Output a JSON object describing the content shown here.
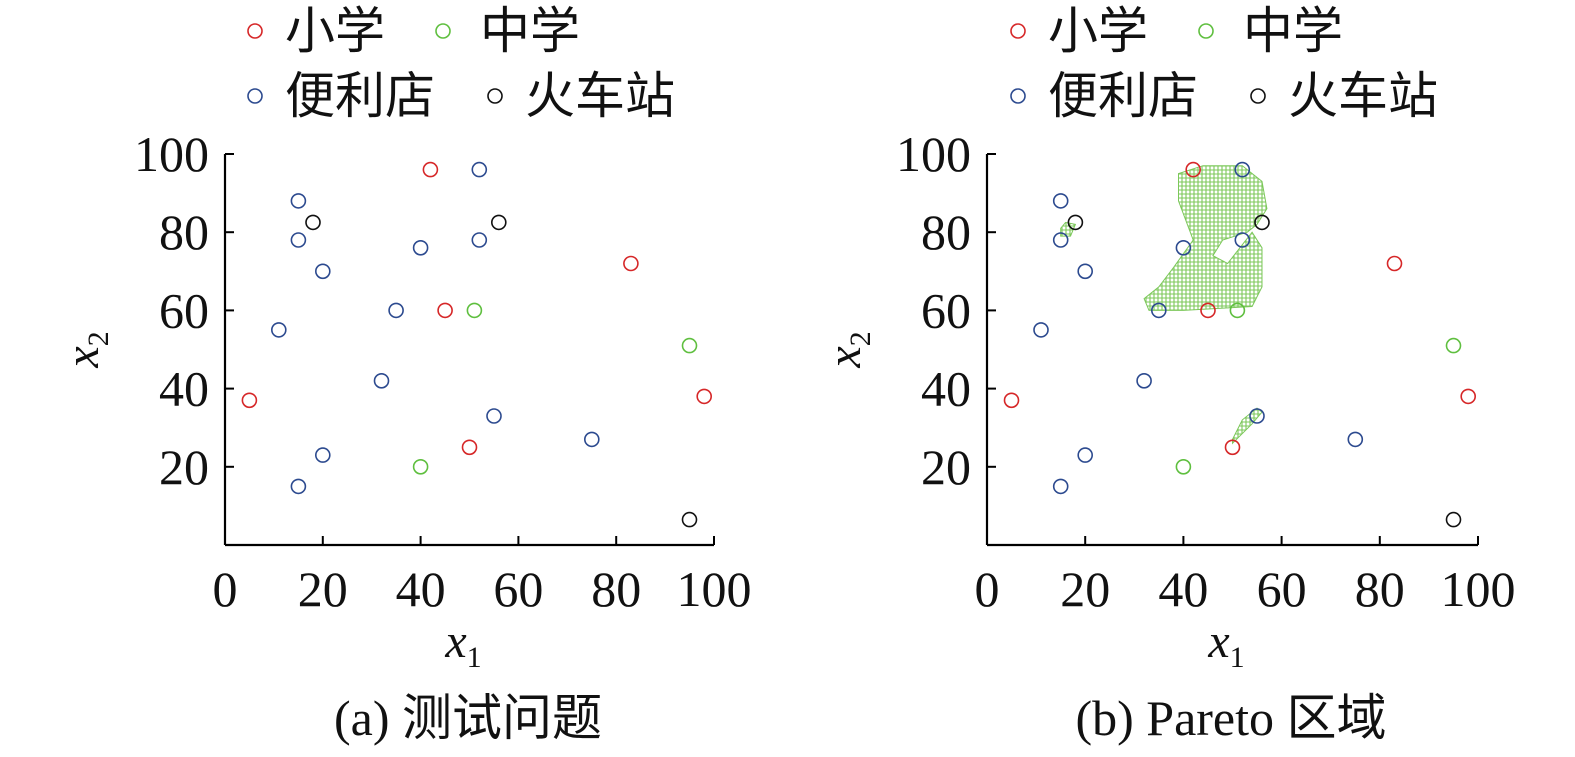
{
  "chart_data": [
    {
      "type": "scatter",
      "caption": "(a) 测试问题",
      "xlabel": "x",
      "xlabel_sub": "1",
      "ylabel": "x",
      "ylabel_sub": "2",
      "xlim": [
        0,
        100
      ],
      "ylim": [
        0,
        100
      ],
      "x_ticks": [
        "0",
        "20",
        "40",
        "60",
        "80",
        "100"
      ],
      "y_ticks": [
        "20",
        "40",
        "60",
        "80",
        "100"
      ],
      "legend": {
        "position": "top",
        "entries": [
          "小学",
          "中学",
          "便利店",
          "火车站"
        ]
      },
      "series": [
        {
          "name": "小学",
          "color": "#d62728",
          "points": [
            [
              5,
              37
            ],
            [
              42,
              96
            ],
            [
              45,
              60
            ],
            [
              50,
              25
            ],
            [
              83,
              72
            ],
            [
              98,
              38
            ]
          ]
        },
        {
          "name": "中学",
          "color": "#5fbf3f",
          "points": [
            [
              40,
              20
            ],
            [
              51,
              60
            ],
            [
              95,
              51
            ]
          ]
        },
        {
          "name": "便利店",
          "color": "#2c4a8f",
          "points": [
            [
              15,
              88
            ],
            [
              15,
              78
            ],
            [
              15,
              15
            ],
            [
              11,
              55
            ],
            [
              20,
              70
            ],
            [
              20,
              23
            ],
            [
              32,
              42
            ],
            [
              35,
              60
            ],
            [
              40,
              76
            ],
            [
              52,
              96
            ],
            [
              52,
              78
            ],
            [
              55,
              33
            ],
            [
              75,
              27
            ]
          ]
        },
        {
          "name": "火车站",
          "color": "#111111",
          "points": [
            [
              18,
              82.5
            ],
            [
              56,
              82.5
            ],
            [
              95,
              6.5
            ]
          ]
        }
      ]
    },
    {
      "type": "scatter",
      "caption": "(b) Pareto 区域",
      "xlabel": "x",
      "xlabel_sub": "1",
      "ylabel": "x",
      "ylabel_sub": "2",
      "xlim": [
        0,
        100
      ],
      "ylim": [
        0,
        100
      ],
      "x_ticks": [
        "0",
        "20",
        "40",
        "60",
        "80",
        "100"
      ],
      "y_ticks": [
        "20",
        "40",
        "60",
        "80",
        "100"
      ],
      "legend": {
        "position": "top",
        "entries": [
          "小学",
          "中学",
          "便利店",
          "火车站"
        ]
      },
      "series": [
        {
          "name": "小学",
          "color": "#d62728",
          "points": [
            [
              5,
              37
            ],
            [
              42,
              96
            ],
            [
              45,
              60
            ],
            [
              50,
              25
            ],
            [
              83,
              72
            ],
            [
              98,
              38
            ]
          ]
        },
        {
          "name": "中学",
          "color": "#5fbf3f",
          "points": [
            [
              40,
              20
            ],
            [
              51,
              60
            ],
            [
              95,
              51
            ]
          ]
        },
        {
          "name": "便利店",
          "color": "#2c4a8f",
          "points": [
            [
              15,
              88
            ],
            [
              15,
              78
            ],
            [
              15,
              15
            ],
            [
              11,
              55
            ],
            [
              20,
              70
            ],
            [
              20,
              23
            ],
            [
              32,
              42
            ],
            [
              35,
              60
            ],
            [
              40,
              76
            ],
            [
              52,
              96
            ],
            [
              52,
              78
            ],
            [
              55,
              33
            ],
            [
              75,
              27
            ]
          ]
        },
        {
          "name": "火车站",
          "color": "#111111",
          "points": [
            [
              18,
              82.5
            ],
            [
              56,
              82.5
            ],
            [
              95,
              6.5
            ]
          ]
        }
      ],
      "pareto_region": {
        "color": "#7cc85a",
        "polygons": [
          [
            [
              39,
              95
            ],
            [
              44,
              97
            ],
            [
              52,
              97
            ],
            [
              56,
              93
            ],
            [
              57,
              86
            ],
            [
              55,
              82
            ],
            [
              53,
              80
            ],
            [
              48,
              78
            ],
            [
              46,
              74
            ],
            [
              49,
              72
            ],
            [
              54,
              80
            ],
            [
              56,
              76
            ],
            [
              56,
              66
            ],
            [
              54,
              61
            ],
            [
              40,
              60
            ],
            [
              33,
              60
            ],
            [
              32,
              63
            ],
            [
              35,
              66
            ],
            [
              38,
              71
            ],
            [
              42,
              78
            ],
            [
              39,
              88
            ]
          ],
          [
            [
              15,
              79
            ],
            [
              17,
              79
            ],
            [
              18,
              82
            ],
            [
              16,
              82.5
            ],
            [
              15,
              81
            ]
          ],
          [
            [
              50,
              26
            ],
            [
              54,
              31
            ],
            [
              56,
              34
            ],
            [
              55,
              35
            ],
            [
              52,
              32
            ],
            [
              50,
              27
            ]
          ]
        ]
      }
    }
  ]
}
